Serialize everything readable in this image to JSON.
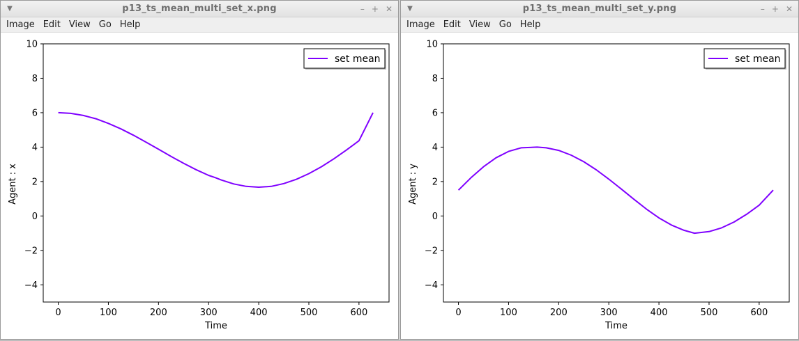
{
  "windows": [
    {
      "title": "p13_ts_mean_multi_set_x.png",
      "menu": [
        "Image",
        "Edit",
        "View",
        "Go",
        "Help"
      ],
      "controls": {
        "minimize": "–",
        "maximize": "+",
        "close": "✕"
      },
      "chart_data": {
        "type": "line",
        "xlabel": "Time",
        "ylabel": "Agent : x",
        "xlim": [
          -30,
          660
        ],
        "ylim": [
          -5,
          10
        ],
        "xticks": [
          "0",
          "100",
          "200",
          "300",
          "400",
          "500",
          "600"
        ],
        "yticks": [
          "−4",
          "−2",
          "0",
          "2",
          "4",
          "6",
          "8",
          "10"
        ],
        "legend": {
          "position": "top-right"
        },
        "series": [
          {
            "name": "set mean",
            "color": "#7f00ff",
            "x": [
              0,
              25,
              50,
              75,
              100,
              125,
              150,
              175,
              200,
              225,
              250,
              275,
              300,
              314,
              325,
              350,
              375,
              400,
              425,
              450,
              475,
              500,
              525,
              550,
              575,
              600,
              628
            ],
            "y": [
              6.0,
              5.96,
              5.84,
              5.65,
              5.38,
              5.06,
              4.69,
              4.29,
              3.88,
              3.46,
              3.06,
              2.69,
              2.36,
              2.22,
              2.09,
              1.86,
              1.72,
              1.67,
              1.72,
              1.88,
              2.13,
              2.46,
              2.86,
              3.32,
              3.83,
              4.37,
              6.0
            ]
          }
        ]
      }
    },
    {
      "title": "p13_ts_mean_multi_set_y.png",
      "menu": [
        "Image",
        "Edit",
        "View",
        "Go",
        "Help"
      ],
      "controls": {
        "minimize": "–",
        "maximize": "+",
        "close": "✕"
      },
      "chart_data": {
        "type": "line",
        "xlabel": "Time",
        "ylabel": "Agent : y",
        "xlim": [
          -30,
          660
        ],
        "ylim": [
          -5,
          10
        ],
        "xticks": [
          "0",
          "100",
          "200",
          "300",
          "400",
          "500",
          "600"
        ],
        "yticks": [
          "−4",
          "−2",
          "0",
          "2",
          "4",
          "6",
          "8",
          "10"
        ],
        "legend": {
          "position": "top-right"
        },
        "series": [
          {
            "name": "set mean",
            "color": "#7f00ff",
            "x": [
              0,
              25,
              50,
              75,
              100,
              125,
              157,
              175,
              200,
              225,
              250,
              275,
              300,
              325,
              350,
              375,
              400,
              425,
              450,
              471,
              500,
              525,
              550,
              575,
              600,
              628
            ],
            "y": [
              1.5,
              2.22,
              2.86,
              3.38,
              3.75,
              3.96,
              4.0,
              3.96,
              3.81,
              3.53,
              3.15,
              2.68,
              2.14,
              1.56,
              0.97,
              0.4,
              -0.11,
              -0.53,
              -0.83,
              -1.0,
              -0.91,
              -0.69,
              -0.35,
              0.1,
              0.63,
              1.5
            ]
          }
        ]
      }
    }
  ]
}
